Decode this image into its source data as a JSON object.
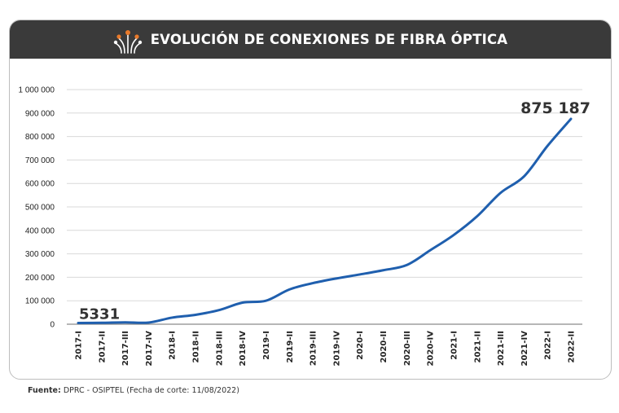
{
  "header": {
    "title": "EVOLUCIÓN DE CONEXIONES DE FIBRA ÓPTICA"
  },
  "footer": {
    "source_label": "Fuente:",
    "source_text": "DPRC - OSIPTEL (Fecha de corte: 11/08/2022)"
  },
  "colors": {
    "header_bg": "#3a3a3a",
    "line": "#1f5fae",
    "accent_orange": "#e8792a",
    "grid": "#d9d9d9"
  },
  "chart_data": {
    "type": "line",
    "title": "EVOLUCIÓN DE CONEXIONES DE FIBRA ÓPTICA",
    "xlabel": "",
    "ylabel": "",
    "ylim": [
      0,
      1000000
    ],
    "yticks": [
      0,
      100000,
      200000,
      300000,
      400000,
      500000,
      600000,
      700000,
      800000,
      900000,
      1000000
    ],
    "ytick_labels": [
      "0",
      "100 000",
      "200 000",
      "300 000",
      "400 000",
      "500 000",
      "600 000",
      "700 000",
      "800 000",
      "900 000",
      "1 000 000"
    ],
    "grid": true,
    "legend": "none",
    "categories": [
      "2017-I",
      "2017-II",
      "2017-III",
      "2017-IV",
      "2018-I",
      "2018-II",
      "2018-III",
      "2018-IV",
      "2019-I",
      "2019-II",
      "2019-III",
      "2019-IV",
      "2020-I",
      "2020-II",
      "2020-III",
      "2020-IV",
      "2021-I",
      "2021-II",
      "2021-III",
      "2021-IV",
      "2022-I",
      "2022-II"
    ],
    "series": [
      {
        "values": [
          5331,
          6000,
          8000,
          7000,
          28000,
          40000,
          60000,
          92000,
          100000,
          148000,
          175000,
          195000,
          212000,
          230000,
          252000,
          315000,
          380000,
          460000,
          560000,
          630000,
          760000,
          875187
        ]
      }
    ],
    "annotations": [
      {
        "label": "5331",
        "at": "2017-I"
      },
      {
        "label": "875 187",
        "at": "2022-II"
      }
    ]
  }
}
